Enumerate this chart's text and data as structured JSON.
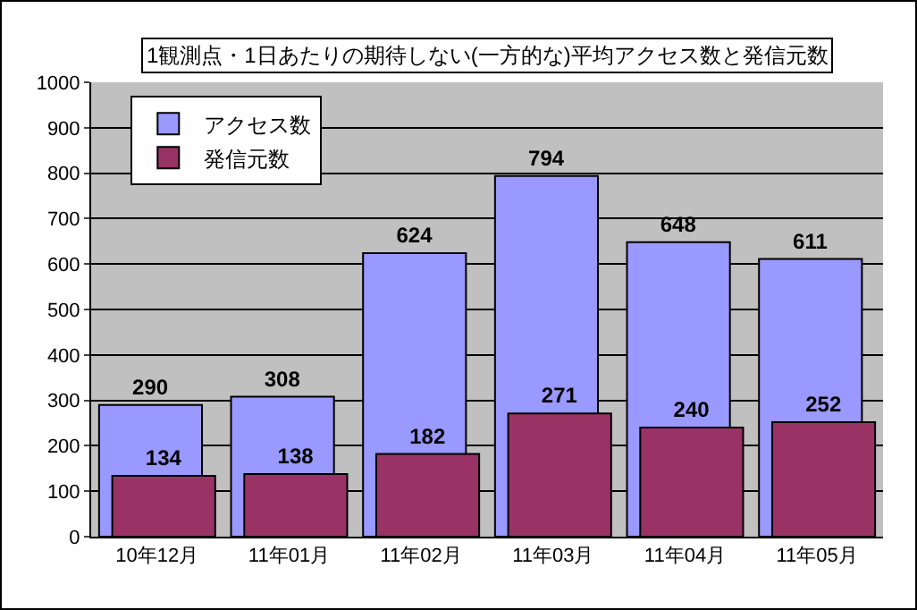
{
  "chart_data": {
    "type": "bar",
    "title": "1観測点・1日あたりの期待しない(一方的な)平均アクセス数と発信元数",
    "categories": [
      "10年12月",
      "11年01月",
      "11年02月",
      "11年03月",
      "11年04月",
      "11年05月"
    ],
    "series": [
      {
        "name": "アクセス数",
        "color": "#9999ff",
        "values": [
          290,
          308,
          624,
          794,
          648,
          611
        ]
      },
      {
        "name": "発信元数",
        "color": "#993366",
        "values": [
          134,
          138,
          182,
          271,
          240,
          252
        ]
      }
    ],
    "ylim": [
      0,
      1000
    ],
    "yticks": [
      0,
      100,
      200,
      300,
      400,
      500,
      600,
      700,
      800,
      900,
      1000
    ],
    "grid": "y",
    "legend": "top left",
    "data_labels": true
  }
}
